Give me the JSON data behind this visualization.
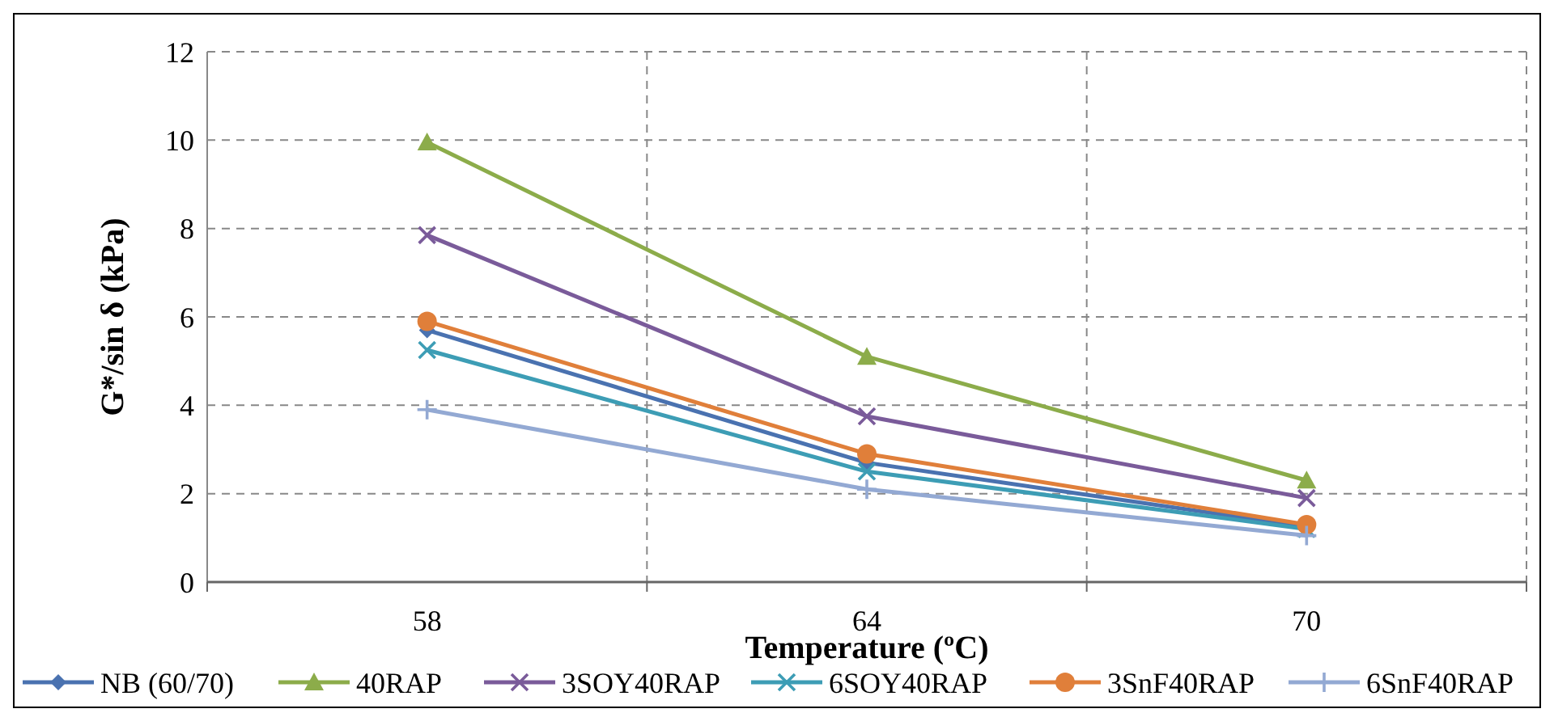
{
  "chart_data": {
    "type": "line",
    "xlabel": "Temperature (ºC)",
    "ylabel": "G*/sin δ (kPa)",
    "categories": [
      "58",
      "64",
      "70"
    ],
    "ylim": [
      0,
      12
    ],
    "yticks": [
      0,
      2,
      4,
      6,
      8,
      10,
      12
    ],
    "grid": true,
    "legend": "bottom",
    "series": [
      {
        "name": "NB (60/70)",
        "color": "#4a72b0",
        "marker": "diamond",
        "values": [
          5.7,
          2.7,
          1.25
        ]
      },
      {
        "name": "40RAP",
        "color": "#8cac4a",
        "marker": "triangle",
        "values": [
          9.95,
          5.1,
          2.3
        ]
      },
      {
        "name": "3SOY40RAP",
        "color": "#7a5b9a",
        "marker": "cross",
        "values": [
          7.85,
          3.75,
          1.9
        ]
      },
      {
        "name": "6SOY40RAP",
        "color": "#3d9db5",
        "marker": "cross",
        "values": [
          5.25,
          2.5,
          1.2
        ]
      },
      {
        "name": "3SnF40RAP",
        "color": "#e07f3a",
        "marker": "circle",
        "values": [
          5.9,
          2.9,
          1.3
        ]
      },
      {
        "name": "6SnF40RAP",
        "color": "#93a9d3",
        "marker": "plus",
        "values": [
          3.9,
          2.1,
          1.05
        ]
      }
    ]
  }
}
